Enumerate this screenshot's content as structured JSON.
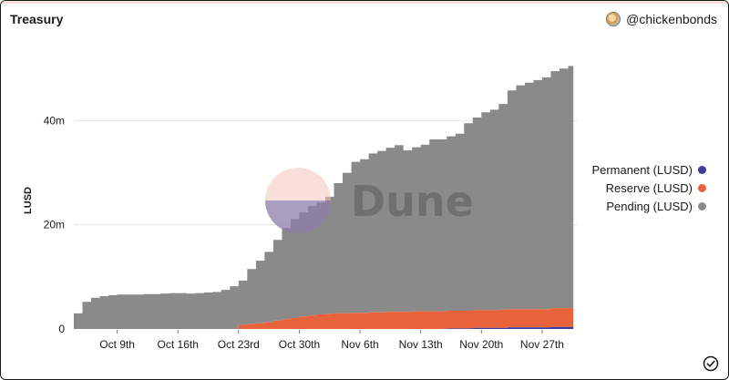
{
  "header": {
    "title": "Treasury",
    "author": "@chickenbonds"
  },
  "watermark": {
    "text": "Dune"
  },
  "chart_data": {
    "type": "area",
    "stacked": true,
    "ylabel": "LUSD",
    "xlabel": "",
    "ylim": [
      0,
      56
    ],
    "yticks": [
      0,
      20,
      40
    ],
    "ytick_labels": [
      "0",
      "20m",
      "40m"
    ],
    "xlim": [
      "2022-10-04",
      "2022-12-01"
    ],
    "xticks": [
      "2022-10-09",
      "2022-10-16",
      "2022-10-23",
      "2022-10-30",
      "2022-11-06",
      "2022-11-13",
      "2022-11-20",
      "2022-11-27"
    ],
    "xtick_labels": [
      "Oct 9th",
      "Oct 16th",
      "Oct 23rd",
      "Oct 30th",
      "Nov 6th",
      "Nov 13th",
      "Nov 20th",
      "Nov 27th"
    ],
    "legend_position": "right",
    "x": [
      "2022-10-04",
      "2022-10-05",
      "2022-10-06",
      "2022-10-07",
      "2022-10-08",
      "2022-10-09",
      "2022-10-10",
      "2022-10-11",
      "2022-10-12",
      "2022-10-13",
      "2022-10-14",
      "2022-10-15",
      "2022-10-16",
      "2022-10-17",
      "2022-10-18",
      "2022-10-19",
      "2022-10-20",
      "2022-10-21",
      "2022-10-22",
      "2022-10-23",
      "2022-10-24",
      "2022-10-25",
      "2022-10-26",
      "2022-10-27",
      "2022-10-28",
      "2022-10-29",
      "2022-10-30",
      "2022-10-31",
      "2022-11-01",
      "2022-11-02",
      "2022-11-03",
      "2022-11-04",
      "2022-11-05",
      "2022-11-06",
      "2022-11-07",
      "2022-11-08",
      "2022-11-09",
      "2022-11-10",
      "2022-11-11",
      "2022-11-12",
      "2022-11-13",
      "2022-11-14",
      "2022-11-15",
      "2022-11-16",
      "2022-11-17",
      "2022-11-18",
      "2022-11-19",
      "2022-11-20",
      "2022-11-21",
      "2022-11-22",
      "2022-11-23",
      "2022-11-24",
      "2022-11-25",
      "2022-11-26",
      "2022-11-27",
      "2022-11-28",
      "2022-11-29",
      "2022-11-30"
    ],
    "series": [
      {
        "name": "Permanent (LUSD)",
        "color": "#3b3b9a",
        "values": [
          0,
          0,
          0,
          0,
          0,
          0,
          0,
          0,
          0,
          0,
          0,
          0,
          0,
          0,
          0,
          0,
          0,
          0,
          0,
          0,
          0,
          0,
          0,
          0,
          0,
          0,
          0,
          0,
          0,
          0,
          0,
          0,
          0,
          0,
          0,
          0,
          0,
          0,
          0,
          0,
          0,
          0,
          0,
          0.1,
          0.1,
          0.1,
          0.2,
          0.2,
          0.2,
          0.2,
          0.3,
          0.3,
          0.3,
          0.3,
          0.3,
          0.4,
          0.4,
          0.4
        ]
      },
      {
        "name": "Reserve (LUSD)",
        "color": "#e8633c",
        "values": [
          0,
          0,
          0,
          0,
          0,
          0,
          0,
          0,
          0,
          0,
          0,
          0,
          0,
          0,
          0,
          0,
          0,
          0,
          0,
          0.8,
          1.0,
          1.1,
          1.3,
          1.6,
          1.9,
          2.1,
          2.4,
          2.6,
          2.8,
          2.9,
          3.0,
          3.0,
          3.1,
          3.1,
          3.2,
          3.2,
          3.3,
          3.3,
          3.3,
          3.4,
          3.4,
          3.4,
          3.4,
          3.4,
          3.4,
          3.4,
          3.4,
          3.4,
          3.4,
          3.5,
          3.5,
          3.5,
          3.5,
          3.5,
          3.5,
          3.6,
          3.6,
          3.6
        ]
      },
      {
        "name": "Pending (LUSD)",
        "color": "#8a8a8a",
        "values": [
          3.0,
          5.2,
          6.0,
          6.3,
          6.5,
          6.6,
          6.6,
          6.6,
          6.7,
          6.7,
          6.8,
          6.9,
          6.9,
          6.8,
          6.9,
          7.0,
          7.1,
          7.5,
          8.2,
          8.5,
          10.5,
          12.0,
          13.5,
          15.5,
          17.5,
          19.0,
          20.0,
          21.0,
          21.5,
          22.5,
          25.0,
          27.0,
          29.0,
          29.5,
          30.5,
          31.0,
          31.5,
          32.0,
          31.0,
          31.5,
          32.0,
          33.0,
          33.0,
          33.5,
          34.0,
          36.0,
          37.0,
          38.0,
          38.5,
          39.5,
          42.0,
          43.0,
          43.5,
          44.0,
          44.5,
          45.5,
          46.0,
          46.5
        ]
      }
    ]
  }
}
